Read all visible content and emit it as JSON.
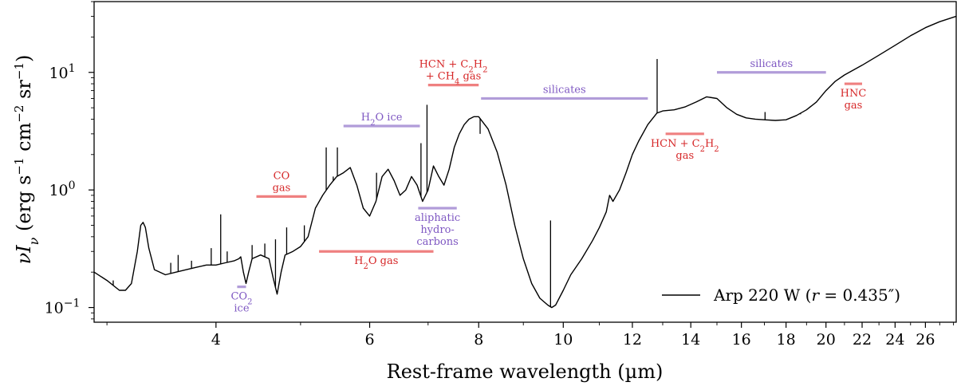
{
  "chart_data": {
    "type": "line",
    "title": "",
    "xlabel": "Rest-frame wavelength (µm)",
    "ylabel_parts": {
      "nu": "ν",
      "i": "I",
      "sub": "ν",
      "units_open": " (erg s",
      "exp1": "−1",
      "cm": " cm",
      "exp2": "−2",
      "sr": " sr",
      "exp3": "−1",
      "close": ")"
    },
    "x_scale": "log",
    "y_scale": "log",
    "xlim": [
      2.9,
      28.2
    ],
    "ylim": [
      0.075,
      40
    ],
    "x_ticks": [
      4,
      6,
      8,
      10,
      12,
      14,
      16,
      18,
      20,
      22,
      24,
      26
    ],
    "x_tick_labels": [
      "4",
      "6",
      "8",
      "10",
      "12",
      "14",
      "16",
      "18",
      "20",
      "22",
      "24",
      "26"
    ],
    "y_ticks": [
      0.1,
      1,
      10
    ],
    "y_tick_labels": [
      {
        "base": "10",
        "exp": "−1"
      },
      {
        "base": "10",
        "exp": "0"
      },
      {
        "base": "10",
        "exp": "1"
      }
    ],
    "legend": {
      "position": "lower-right",
      "entry": {
        "name": "Arp 220 W",
        "r_prefix": " (",
        "r_var": "r",
        "r_eq": " = 0.435″)"
      }
    },
    "series": [
      {
        "name": "Arp 220 W",
        "color": "#000000",
        "x": [
          2.9,
          3.0,
          3.1,
          3.15,
          3.2,
          3.25,
          3.28,
          3.3,
          3.32,
          3.35,
          3.4,
          3.5,
          3.6,
          3.7,
          3.8,
          3.9,
          4.0,
          4.1,
          4.2,
          4.25,
          4.27,
          4.3,
          4.33,
          4.36,
          4.4,
          4.5,
          4.6,
          4.65,
          4.7,
          4.75,
          4.8,
          4.9,
          5.0,
          5.1,
          5.2,
          5.3,
          5.4,
          5.5,
          5.6,
          5.7,
          5.8,
          5.9,
          6.0,
          6.1,
          6.2,
          6.3,
          6.4,
          6.5,
          6.6,
          6.7,
          6.8,
          6.9,
          7.0,
          7.1,
          7.2,
          7.3,
          7.4,
          7.5,
          7.6,
          7.7,
          7.8,
          7.9,
          8.0,
          8.2,
          8.4,
          8.6,
          8.8,
          9.0,
          9.2,
          9.4,
          9.6,
          9.7,
          9.8,
          10.0,
          10.2,
          10.5,
          10.8,
          11.0,
          11.2,
          11.3,
          11.4,
          11.6,
          11.8,
          12.0,
          12.2,
          12.5,
          12.8,
          13.0,
          13.4,
          13.8,
          14.2,
          14.6,
          15.0,
          15.4,
          15.8,
          16.2,
          16.6,
          17.0,
          17.5,
          18.0,
          18.5,
          19.0,
          19.5,
          20.0,
          20.5,
          21.0,
          22.0,
          23.0,
          24.0,
          25.0,
          26.0,
          27.0,
          28.2
        ],
        "y": [
          0.2,
          0.17,
          0.14,
          0.14,
          0.16,
          0.3,
          0.5,
          0.53,
          0.48,
          0.32,
          0.21,
          0.19,
          0.2,
          0.21,
          0.22,
          0.23,
          0.23,
          0.24,
          0.25,
          0.26,
          0.27,
          0.2,
          0.16,
          0.2,
          0.26,
          0.28,
          0.26,
          0.18,
          0.13,
          0.2,
          0.28,
          0.3,
          0.33,
          0.4,
          0.7,
          0.9,
          1.1,
          1.3,
          1.4,
          1.55,
          1.1,
          0.7,
          0.6,
          0.8,
          1.3,
          1.5,
          1.2,
          0.9,
          1.0,
          1.3,
          1.1,
          0.8,
          1.0,
          1.6,
          1.3,
          1.1,
          1.5,
          2.3,
          3.0,
          3.6,
          4.0,
          4.2,
          4.2,
          3.3,
          2.1,
          1.1,
          0.5,
          0.26,
          0.16,
          0.12,
          0.105,
          0.1,
          0.105,
          0.14,
          0.19,
          0.26,
          0.37,
          0.48,
          0.65,
          0.9,
          0.8,
          1.0,
          1.4,
          2.0,
          2.6,
          3.6,
          4.5,
          4.7,
          4.8,
          5.1,
          5.6,
          6.2,
          6.0,
          5.0,
          4.4,
          4.1,
          4.0,
          3.95,
          3.9,
          3.95,
          4.3,
          4.8,
          5.6,
          7.0,
          8.4,
          9.5,
          11.5,
          14.0,
          17.0,
          20.5,
          24.0,
          27.0,
          30.0
        ]
      }
    ],
    "emission_lines": [
      {
        "x": 3.05,
        "peak": 0.17
      },
      {
        "x": 3.55,
        "peak": 0.24
      },
      {
        "x": 3.62,
        "peak": 0.28
      },
      {
        "x": 3.75,
        "peak": 0.25
      },
      {
        "x": 3.95,
        "peak": 0.32
      },
      {
        "x": 4.05,
        "peak": 0.62
      },
      {
        "x": 4.12,
        "peak": 0.3
      },
      {
        "x": 4.4,
        "peak": 0.34
      },
      {
        "x": 4.55,
        "peak": 0.35
      },
      {
        "x": 4.68,
        "peak": 0.38
      },
      {
        "x": 4.82,
        "peak": 0.48
      },
      {
        "x": 5.05,
        "peak": 0.5
      },
      {
        "x": 5.35,
        "peak": 2.3
      },
      {
        "x": 5.45,
        "peak": 1.3
      },
      {
        "x": 5.51,
        "peak": 2.3
      },
      {
        "x": 6.11,
        "peak": 1.4
      },
      {
        "x": 6.87,
        "peak": 2.5
      },
      {
        "x": 6.98,
        "peak": 5.3
      },
      {
        "x": 8.03,
        "peak": 3.0
      },
      {
        "x": 9.67,
        "peak": 0.55
      },
      {
        "x": 12.81,
        "peak": 13.0
      },
      {
        "x": 17.03,
        "peak": 4.6
      },
      {
        "x": 18.7,
        "peak": 4.4
      }
    ],
    "features": [
      {
        "id": "co2-ice",
        "lines": [
          "CO",
          "2",
          "ice"
        ],
        "x1": 4.23,
        "x2": 4.33,
        "y": 0.15,
        "color": "#b19cd9",
        "text_color": "#7e57c2",
        "label_pos": "below"
      },
      {
        "id": "co-gas",
        "lines": [
          "CO",
          "gas"
        ],
        "x1": 4.45,
        "x2": 5.08,
        "y": 0.88,
        "color": "#ef8080",
        "text_color": "#d62728",
        "label_pos": "above"
      },
      {
        "id": "h2o-gas",
        "lines": [
          "H",
          "2",
          "O gas"
        ],
        "x1": 5.25,
        "x2": 7.1,
        "y": 0.3,
        "color": "#ef8080",
        "text_color": "#d62728",
        "label_pos": "below"
      },
      {
        "id": "h2o-ice",
        "lines": [
          "H",
          "2",
          "O ice"
        ],
        "x1": 5.6,
        "x2": 6.85,
        "y": 3.5,
        "color": "#b19cd9",
        "text_color": "#7e57c2",
        "label_pos": "above"
      },
      {
        "id": "aliphatic",
        "lines": [
          "aliphatic",
          "hydro-",
          "carbons"
        ],
        "x1": 6.82,
        "x2": 7.55,
        "y": 0.7,
        "color": "#b19cd9",
        "text_color": "#7e57c2",
        "label_pos": "below"
      },
      {
        "id": "hcn-c2h2-ch4",
        "lines": [
          "HCN + C",
          "2",
          "H",
          "2",
          "+ CH",
          "4",
          " gas"
        ],
        "x1": 7.0,
        "x2": 8.0,
        "y": 7.8,
        "color": "#ef8080",
        "text_color": "#d62728",
        "label_pos": "above"
      },
      {
        "id": "silicates-1",
        "lines": [
          "silicates"
        ],
        "x1": 8.05,
        "x2": 12.5,
        "y": 6.0,
        "color": "#b19cd9",
        "text_color": "#7e57c2",
        "label_pos": "above"
      },
      {
        "id": "hcn-c2h2",
        "lines": [
          "HCN + C",
          "2",
          "H",
          "2",
          "gas"
        ],
        "x1": 13.1,
        "x2": 14.5,
        "y": 3.0,
        "color": "#ef8080",
        "text_color": "#d62728",
        "label_pos": "below"
      },
      {
        "id": "silicates-2",
        "lines": [
          "silicates"
        ],
        "x1": 15.0,
        "x2": 20.0,
        "y": 10.0,
        "color": "#b19cd9",
        "text_color": "#7e57c2",
        "label_pos": "above"
      },
      {
        "id": "hnc-gas",
        "lines": [
          "HNC",
          "gas"
        ],
        "x1": 21.0,
        "x2": 22.0,
        "y": 8.0,
        "color": "#ef8080",
        "text_color": "#d62728",
        "label_pos": "below"
      }
    ]
  }
}
